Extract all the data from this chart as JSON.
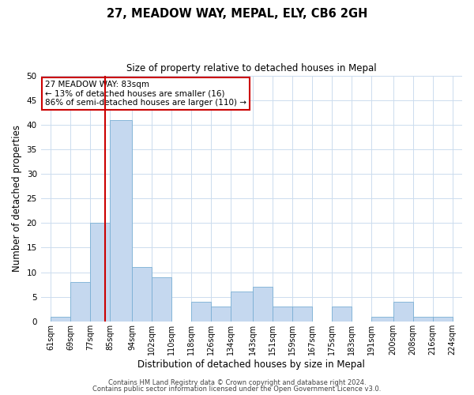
{
  "title": "27, MEADOW WAY, MEPAL, ELY, CB6 2GH",
  "subtitle": "Size of property relative to detached houses in Mepal",
  "xlabel": "Distribution of detached houses by size in Mepal",
  "ylabel": "Number of detached properties",
  "bar_edges": [
    61,
    69,
    77,
    85,
    94,
    102,
    110,
    118,
    126,
    134,
    143,
    151,
    159,
    167,
    175,
    183,
    191,
    200,
    208,
    216,
    224
  ],
  "bar_heights": [
    1,
    8,
    20,
    41,
    11,
    9,
    0,
    4,
    3,
    6,
    7,
    3,
    3,
    0,
    3,
    0,
    1,
    4,
    1,
    1
  ],
  "bar_color": "#c5d8ef",
  "bar_edge_color": "#7aafd4",
  "vline_x": 83,
  "vline_color": "#cc0000",
  "ylim": [
    0,
    50
  ],
  "yticks": [
    0,
    5,
    10,
    15,
    20,
    25,
    30,
    35,
    40,
    45,
    50
  ],
  "tick_labels": [
    "61sqm",
    "69sqm",
    "77sqm",
    "85sqm",
    "94sqm",
    "102sqm",
    "110sqm",
    "118sqm",
    "126sqm",
    "134sqm",
    "143sqm",
    "151sqm",
    "159sqm",
    "167sqm",
    "175sqm",
    "183sqm",
    "191sqm",
    "200sqm",
    "208sqm",
    "216sqm",
    "224sqm"
  ],
  "annotation_title": "27 MEADOW WAY: 83sqm",
  "annotation_line1": "← 13% of detached houses are smaller (16)",
  "annotation_line2": "86% of semi-detached houses are larger (110) →",
  "annotation_box_color": "#ffffff",
  "annotation_box_edge_color": "#cc0000",
  "footer1": "Contains HM Land Registry data © Crown copyright and database right 2024.",
  "footer2": "Contains public sector information licensed under the Open Government Licence v3.0.",
  "bg_color": "#ffffff",
  "grid_color": "#ccdcee"
}
